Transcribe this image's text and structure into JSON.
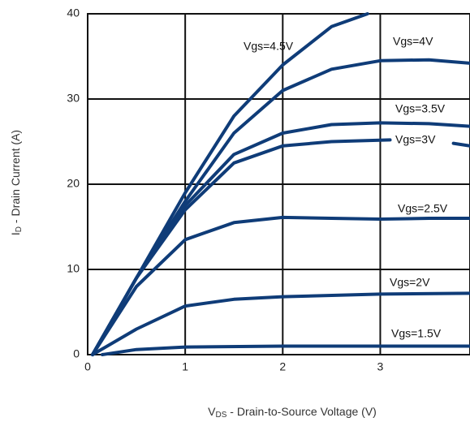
{
  "chart_data": {
    "type": "line",
    "xlabel": {
      "main": "V",
      "sub": "DS",
      "rest": " - Drain-to-Source Voltage (V)"
    },
    "ylabel": {
      "main": "I",
      "sub": "D",
      "rest": " - Drain Current (A)"
    },
    "xlim": [
      0,
      3.92
    ],
    "ylim": [
      0,
      40
    ],
    "xticks": [
      0,
      1,
      2,
      3
    ],
    "yticks": [
      0,
      10,
      20,
      30,
      40
    ],
    "grid": true,
    "series": [
      {
        "name": "Vgs=4.5V",
        "color": "#0f3c78",
        "x": [
          0.05,
          0.5,
          1,
          1.5,
          2,
          2.5,
          2.87
        ],
        "values": [
          0,
          9,
          19,
          28,
          34,
          38.5,
          40
        ]
      },
      {
        "name": "Vgs=4V",
        "color": "#0f3c78",
        "x": [
          0.05,
          0.5,
          1,
          1.5,
          2,
          2.5,
          3,
          3.5,
          3.92
        ],
        "values": [
          0,
          9,
          18,
          26,
          31,
          33.5,
          34.5,
          34.6,
          34.2
        ]
      },
      {
        "name": "Vgs=3.5V",
        "color": "#0f3c78",
        "x": [
          0.05,
          0.5,
          1,
          1.5,
          2,
          2.5,
          3,
          3.5,
          3.92
        ],
        "values": [
          0,
          9,
          17.5,
          23.5,
          26,
          27,
          27.2,
          27.1,
          26.8
        ]
      },
      {
        "name": "Vgs=3V",
        "color": "#0f3c78",
        "x": [
          0.05,
          0.5,
          1,
          1.5,
          2,
          2.5,
          3.1,
          null,
          3.75,
          3.92
        ],
        "values": [
          0,
          9,
          17,
          22.5,
          24.5,
          25,
          25.2,
          null,
          24.8,
          24.5
        ]
      },
      {
        "name": "Vgs=2.5V",
        "color": "#0f3c78",
        "x": [
          0.05,
          0.5,
          1,
          1.5,
          2,
          2.5,
          3,
          3.5,
          3.92
        ],
        "values": [
          0,
          8,
          13.5,
          15.5,
          16.1,
          16,
          15.9,
          16,
          16
        ]
      },
      {
        "name": "Vgs=2V",
        "color": "#0f3c78",
        "x": [
          0.05,
          0.5,
          1,
          1.5,
          2,
          3,
          3.92
        ],
        "values": [
          0,
          3,
          5.7,
          6.5,
          6.8,
          7.1,
          7.2
        ]
      },
      {
        "name": "Vgs=1.5V",
        "color": "#0f3c78",
        "x": [
          0.15,
          0.5,
          1,
          2,
          3,
          3.92
        ],
        "values": [
          0,
          0.6,
          0.9,
          1,
          1,
          1
        ]
      }
    ]
  }
}
